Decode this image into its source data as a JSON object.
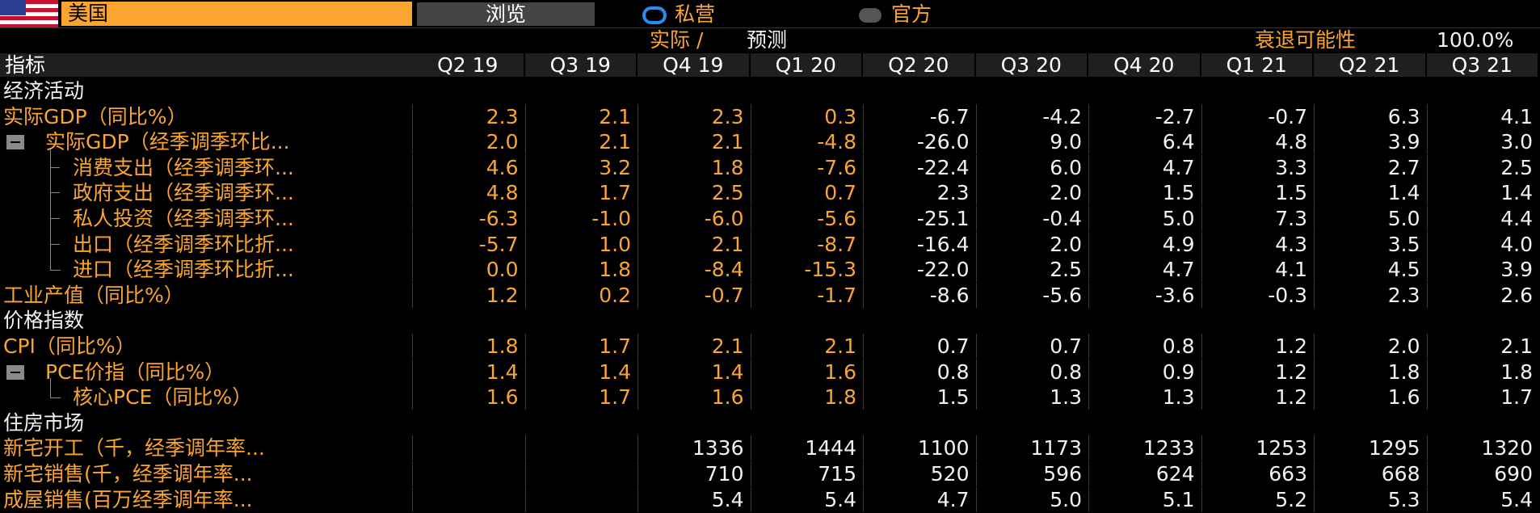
{
  "header": {
    "country": "美国",
    "browse": "浏览",
    "radio_private": "私营",
    "radio_official": "官方",
    "actual": "实际 /",
    "forecast": "预测",
    "recession_label": "衰退可能性",
    "recession_value": "100.0%"
  },
  "table": {
    "columns": [
      "指标",
      "Q2 19",
      "Q3 19",
      "Q4 19",
      "Q1 20",
      "Q2 20",
      "Q3 20",
      "Q4 20",
      "Q1 21",
      "Q2 21",
      "Q3 21"
    ],
    "sections": [
      {
        "title": "经济活动",
        "rows": [
          {
            "label": "实际GDP（同比%）",
            "values": [
              "2.3",
              "2.1",
              "2.3",
              "0.3",
              "-6.7",
              "-4.2",
              "-2.7",
              "-0.7",
              "6.3",
              "4.1"
            ]
          },
          {
            "label": "实际GDP（经季调季环比...",
            "values": [
              "2.0",
              "2.1",
              "2.1",
              "-4.8",
              "-26.0",
              "9.0",
              "6.4",
              "4.8",
              "3.9",
              "3.0"
            ]
          },
          {
            "label": "消费支出（经季调季环...",
            "values": [
              "4.6",
              "3.2",
              "1.8",
              "-7.6",
              "-22.4",
              "6.0",
              "4.7",
              "3.3",
              "2.7",
              "2.5"
            ]
          },
          {
            "label": "政府支出（经季调季环...",
            "values": [
              "4.8",
              "1.7",
              "2.5",
              "0.7",
              "2.3",
              "2.0",
              "1.5",
              "1.5",
              "1.4",
              "1.4"
            ]
          },
          {
            "label": "私人投资（经季调季环...",
            "values": [
              "-6.3",
              "-1.0",
              "-6.0",
              "-5.6",
              "-25.1",
              "-0.4",
              "5.0",
              "7.3",
              "5.0",
              "4.4"
            ]
          },
          {
            "label": "出口（经季调季环比折...",
            "values": [
              "-5.7",
              "1.0",
              "2.1",
              "-8.7",
              "-16.4",
              "2.0",
              "4.9",
              "4.3",
              "3.5",
              "4.0"
            ]
          },
          {
            "label": "进口（经季调季环比折...",
            "values": [
              "0.0",
              "1.8",
              "-8.4",
              "-15.3",
              "-22.0",
              "2.5",
              "4.7",
              "4.1",
              "4.5",
              "3.9"
            ]
          },
          {
            "label": "工业产值（同比%）",
            "values": [
              "1.2",
              "0.2",
              "-0.7",
              "-1.7",
              "-8.6",
              "-5.6",
              "-3.6",
              "-0.3",
              "2.3",
              "2.6"
            ]
          }
        ]
      },
      {
        "title": "价格指数",
        "rows": [
          {
            "label": "CPI（同比%）",
            "values": [
              "1.8",
              "1.7",
              "2.1",
              "2.1",
              "0.7",
              "0.7",
              "0.8",
              "1.2",
              "2.0",
              "2.1"
            ]
          },
          {
            "label": "PCE价指（同比%）",
            "values": [
              "1.4",
              "1.4",
              "1.4",
              "1.6",
              "0.8",
              "0.8",
              "0.9",
              "1.2",
              "1.8",
              "1.8"
            ]
          },
          {
            "label": "核心PCE（同比%）",
            "values": [
              "1.6",
              "1.7",
              "1.6",
              "1.8",
              "1.5",
              "1.3",
              "1.3",
              "1.2",
              "1.6",
              "1.7"
            ]
          }
        ]
      },
      {
        "title": "住房市场",
        "rows": [
          {
            "label": "新宅开工（千，经季调年率...",
            "values": [
              null,
              null,
              "1336",
              "1444",
              "1100",
              "1173",
              "1233",
              "1253",
              "1295",
              "1320"
            ]
          },
          {
            "label": "新宅销售(千，经季调年率...",
            "values": [
              null,
              null,
              "710",
              "715",
              "520",
              "596",
              "624",
              "663",
              "668",
              "690"
            ]
          },
          {
            "label": "成屋销售(百万经季调年率...",
            "values": [
              null,
              null,
              "5.4",
              "5.4",
              "4.7",
              "5.0",
              "5.1",
              "5.2",
              "5.3",
              "5.4"
            ]
          }
        ]
      }
    ]
  }
}
